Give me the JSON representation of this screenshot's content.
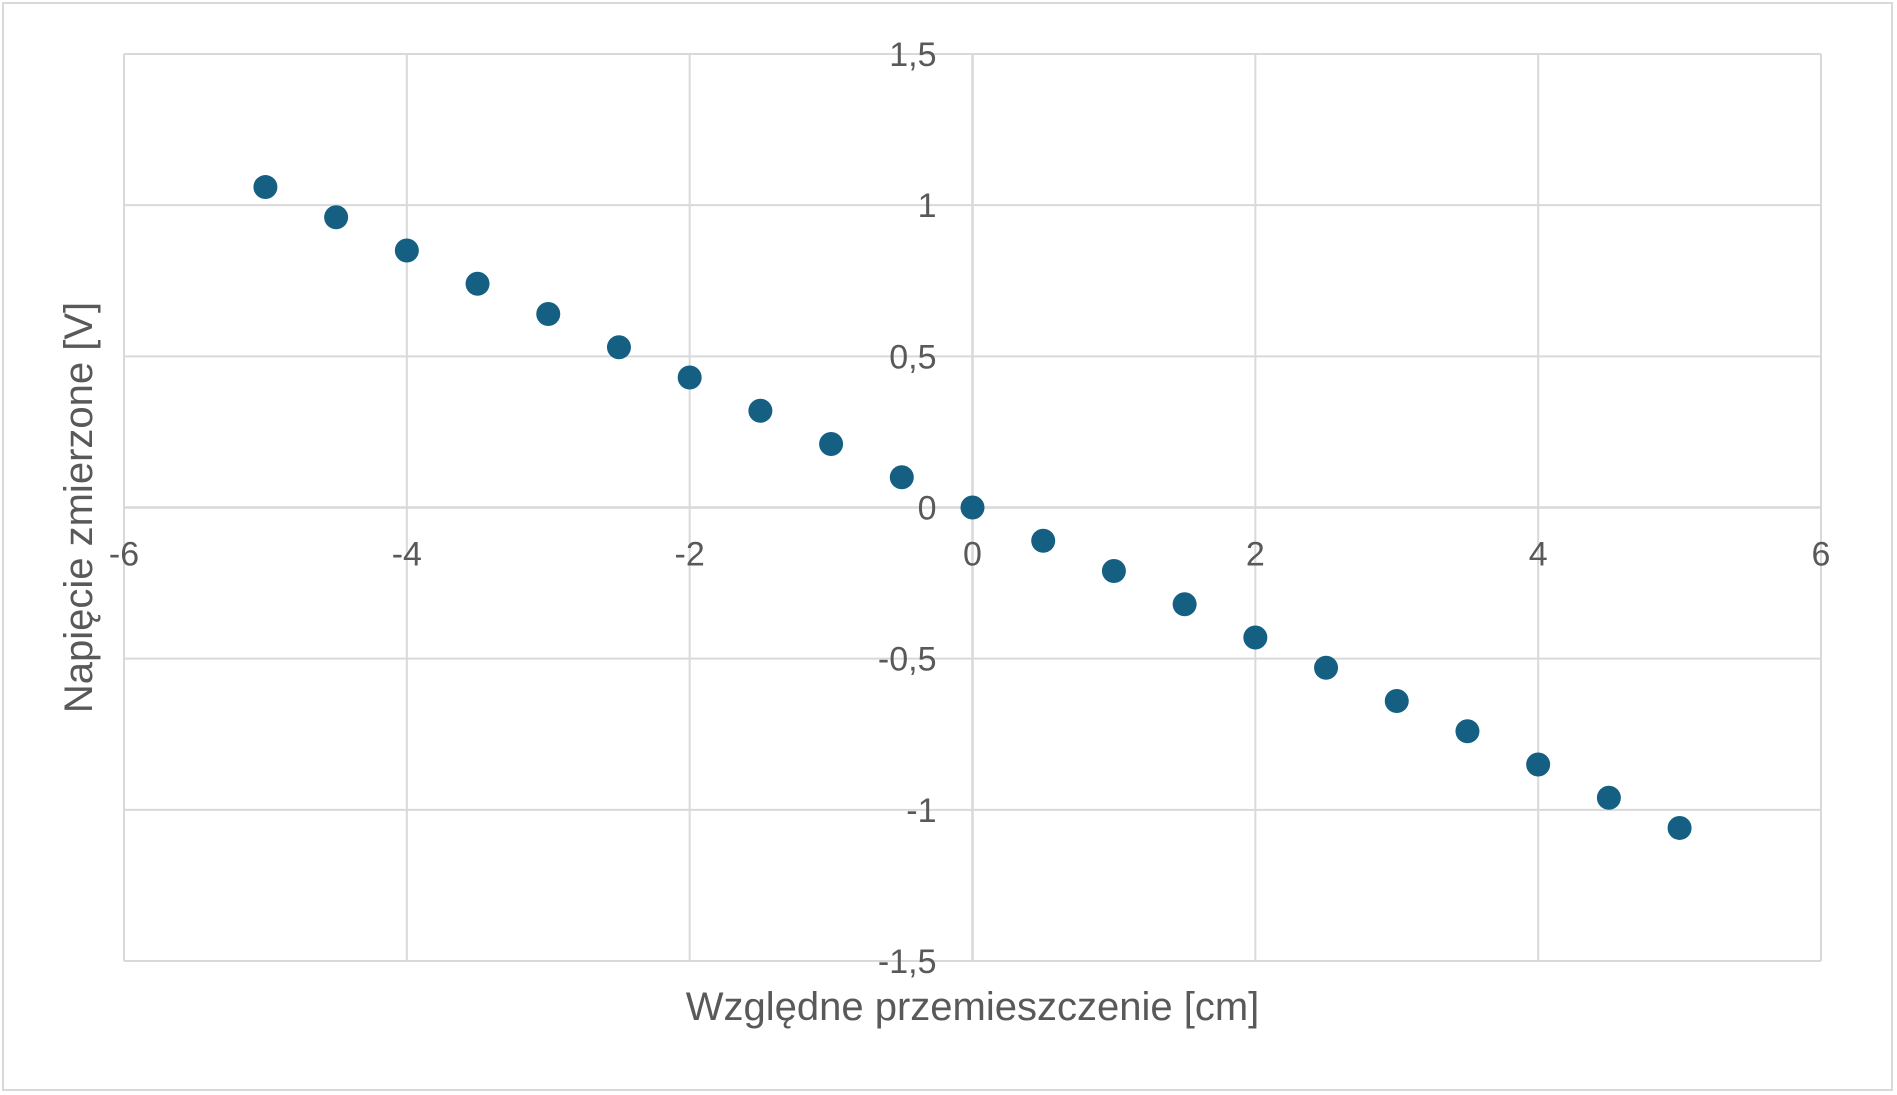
{
  "chart_data": {
    "type": "scatter",
    "title": "",
    "xlabel": "Względne przemieszczenie [cm]",
    "ylabel": "Napięcie zmierzone [V]",
    "xlim": [
      -6,
      6
    ],
    "ylim": [
      -1.5,
      1.5
    ],
    "x_ticks": [
      -6,
      -4,
      -2,
      0,
      2,
      4,
      6
    ],
    "x_tick_labels": [
      "-6",
      "-4",
      "-2",
      "0",
      "2",
      "4",
      "6"
    ],
    "y_ticks": [
      -1.5,
      -1,
      -0.5,
      0,
      0.5,
      1,
      1.5
    ],
    "y_tick_labels": [
      "-1,5",
      "-1",
      "-0,5",
      "0",
      "0,5",
      "1",
      "1,5"
    ],
    "grid": true,
    "legend": "none",
    "colors": {
      "marker": "#156082",
      "grid": "#d9d9d9",
      "text": "#595959"
    },
    "series": [
      {
        "x": [
          -5,
          -4.5,
          -4,
          -3.5,
          -3,
          -2.5,
          -2,
          -1.5,
          -1,
          -0.5,
          0,
          0.5,
          1,
          1.5,
          2,
          2.5,
          3,
          3.5,
          4,
          4.5,
          5
        ],
        "y": [
          1.06,
          0.96,
          0.85,
          0.74,
          0.64,
          0.53,
          0.43,
          0.32,
          0.21,
          0.1,
          0,
          -0.11,
          -0.21,
          -0.32,
          -0.43,
          -0.53,
          -0.64,
          -0.74,
          -0.85,
          -0.96,
          -1.06
        ]
      }
    ]
  }
}
